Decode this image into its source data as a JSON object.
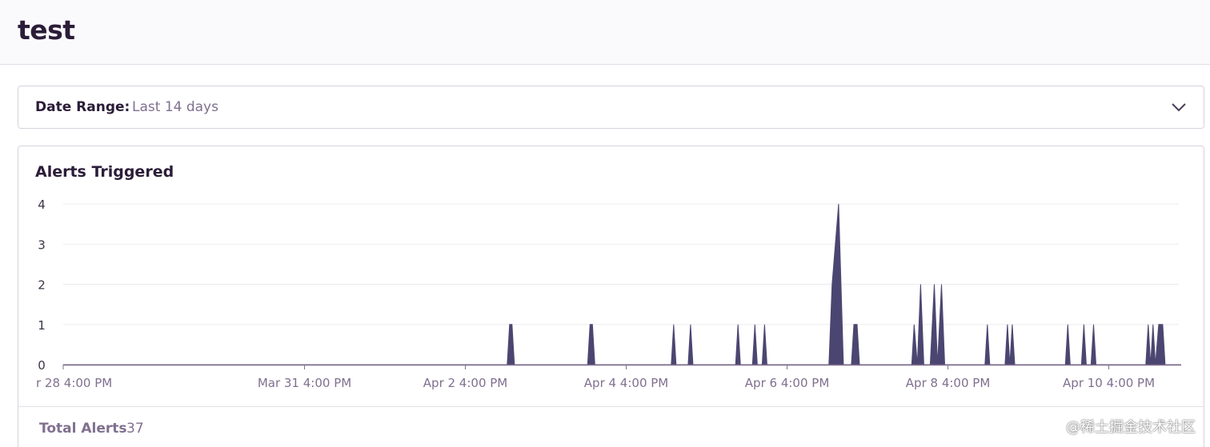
{
  "header": {
    "title": "test"
  },
  "date_range": {
    "label": "Date Range:",
    "value": "Last 14 days",
    "icon": "chevron-down-icon"
  },
  "panel": {
    "title": "Alerts Triggered"
  },
  "footer": {
    "label": "Total Alerts",
    "value": "37"
  },
  "watermark": "@稀土掘金技术社区",
  "colors": {
    "area": "#4b4671",
    "axis": "#80708f",
    "grid": "#eeebf1"
  },
  "chart_data": {
    "type": "area",
    "title": "Alerts Triggered",
    "xlabel": "",
    "ylabel": "",
    "ylim": [
      0,
      4
    ],
    "yticks": [
      "0",
      "1",
      "2",
      "3",
      "4"
    ],
    "xticks": [
      "r 28 4:00 PM",
      "Mar 31 4:00 PM",
      "Apr 2 4:00 PM",
      "Apr 4 4:00 PM",
      "Apr 6 4:00 PM",
      "Apr 8 4:00 PM",
      "Apr 10 4:00 PM"
    ],
    "x_unit": "day (day 0 = Mar 28 4:00 PM tick)",
    "x_range": [
      0,
      13.9
    ],
    "grid": true,
    "series": [
      {
        "name": "Alerts Triggered",
        "points": [
          {
            "x": 0.0,
            "y": 0
          },
          {
            "x": 5.52,
            "y": 0
          },
          {
            "x": 5.55,
            "y": 1
          },
          {
            "x": 5.58,
            "y": 1
          },
          {
            "x": 5.61,
            "y": 0
          },
          {
            "x": 6.52,
            "y": 0
          },
          {
            "x": 6.55,
            "y": 1
          },
          {
            "x": 6.58,
            "y": 1
          },
          {
            "x": 6.61,
            "y": 0
          },
          {
            "x": 7.56,
            "y": 0
          },
          {
            "x": 7.59,
            "y": 1
          },
          {
            "x": 7.62,
            "y": 0
          },
          {
            "x": 7.77,
            "y": 0
          },
          {
            "x": 7.8,
            "y": 1
          },
          {
            "x": 7.83,
            "y": 0
          },
          {
            "x": 8.36,
            "y": 0
          },
          {
            "x": 8.39,
            "y": 1
          },
          {
            "x": 8.42,
            "y": 0
          },
          {
            "x": 8.57,
            "y": 0
          },
          {
            "x": 8.6,
            "y": 1
          },
          {
            "x": 8.63,
            "y": 0
          },
          {
            "x": 8.69,
            "y": 0
          },
          {
            "x": 8.72,
            "y": 1
          },
          {
            "x": 8.75,
            "y": 0
          },
          {
            "x": 9.52,
            "y": 0
          },
          {
            "x": 9.56,
            "y": 2
          },
          {
            "x": 9.64,
            "y": 4
          },
          {
            "x": 9.7,
            "y": 0
          },
          {
            "x": 9.8,
            "y": 0
          },
          {
            "x": 9.83,
            "y": 1
          },
          {
            "x": 9.87,
            "y": 1
          },
          {
            "x": 9.9,
            "y": 0
          },
          {
            "x": 10.55,
            "y": 0
          },
          {
            "x": 10.58,
            "y": 1
          },
          {
            "x": 10.62,
            "y": 0
          },
          {
            "x": 10.66,
            "y": 2
          },
          {
            "x": 10.7,
            "y": 0
          },
          {
            "x": 10.78,
            "y": 0
          },
          {
            "x": 10.83,
            "y": 2
          },
          {
            "x": 10.87,
            "y": 0
          },
          {
            "x": 10.92,
            "y": 2
          },
          {
            "x": 10.96,
            "y": 0
          },
          {
            "x": 11.46,
            "y": 0
          },
          {
            "x": 11.49,
            "y": 1
          },
          {
            "x": 11.52,
            "y": 0
          },
          {
            "x": 11.71,
            "y": 0
          },
          {
            "x": 11.74,
            "y": 1
          },
          {
            "x": 11.77,
            "y": 0
          },
          {
            "x": 11.8,
            "y": 1
          },
          {
            "x": 11.83,
            "y": 0
          },
          {
            "x": 12.46,
            "y": 0
          },
          {
            "x": 12.49,
            "y": 1
          },
          {
            "x": 12.52,
            "y": 0
          },
          {
            "x": 12.66,
            "y": 0
          },
          {
            "x": 12.69,
            "y": 1
          },
          {
            "x": 12.72,
            "y": 0
          },
          {
            "x": 12.78,
            "y": 0
          },
          {
            "x": 12.81,
            "y": 1
          },
          {
            "x": 12.84,
            "y": 0
          },
          {
            "x": 13.46,
            "y": 0
          },
          {
            "x": 13.49,
            "y": 1
          },
          {
            "x": 13.52,
            "y": 0
          },
          {
            "x": 13.55,
            "y": 1
          },
          {
            "x": 13.58,
            "y": 0
          },
          {
            "x": 13.62,
            "y": 1
          },
          {
            "x": 13.67,
            "y": 1
          },
          {
            "x": 13.7,
            "y": 0
          },
          {
            "x": 13.9,
            "y": 0
          }
        ]
      }
    ]
  }
}
